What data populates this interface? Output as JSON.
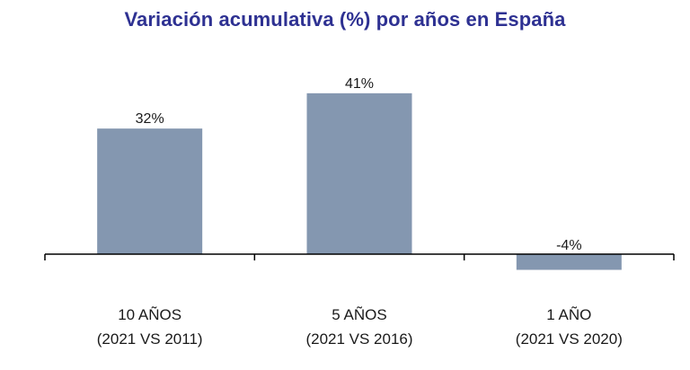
{
  "chart_data": {
    "type": "bar",
    "title": "Variación acumulativa (%) por años en España",
    "categories": [
      [
        "10 AÑOS",
        "(2021 VS 2011)"
      ],
      [
        "5 AÑOS",
        "(2021 VS 2016)"
      ],
      [
        "1 AÑO",
        "(2021 VS 2020)"
      ]
    ],
    "values": [
      32,
      41,
      -4
    ],
    "data_labels": [
      "32%",
      "41%",
      "-4%"
    ],
    "xlabel": "",
    "ylabel": "",
    "grid": false,
    "legend": "none",
    "colors": {
      "bar": "#8497b0",
      "title": "#2e3192",
      "axis": "#000000"
    }
  }
}
